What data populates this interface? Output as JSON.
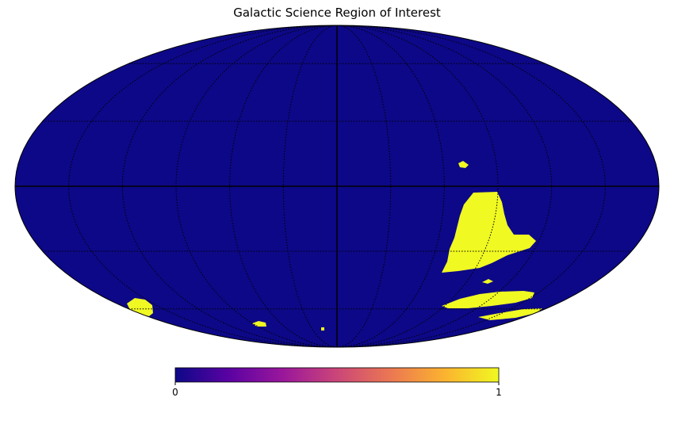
{
  "title": "Galactic Science Region of Interest",
  "projection": "mollweide",
  "colormap": {
    "name": "plasma",
    "stops": [
      "#0d0887",
      "#5b02a3",
      "#9a179b",
      "#cb4678",
      "#eb7852",
      "#fbb32f",
      "#f0f921"
    ],
    "min_label": "0",
    "max_label": "1"
  },
  "background_value": 0,
  "background_color": "#0d0887",
  "region_color": "#f0f921",
  "graticule": {
    "meridian_step_deg": 30,
    "parallel_step_deg": 30,
    "style": "dotted"
  },
  "regions": [
    {
      "name": "main-region",
      "value": 1
    },
    {
      "name": "upper-fragment",
      "value": 1
    },
    {
      "name": "lower-band",
      "value": 1
    },
    {
      "name": "lower-band-tail",
      "value": 1
    },
    {
      "name": "small-spot",
      "value": 1
    },
    {
      "name": "southwest-region",
      "value": 1
    },
    {
      "name": "south-fragment-1",
      "value": 1
    },
    {
      "name": "south-fragment-2",
      "value": 1
    }
  ]
}
